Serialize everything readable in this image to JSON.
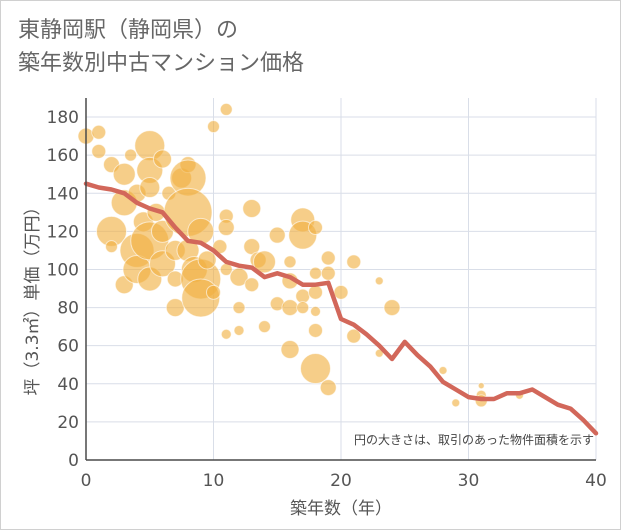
{
  "title_line1": "東静岡駅（静岡県）の",
  "title_line2": "築年数別中古マンション価格",
  "chart_data": {
    "type": "scatter",
    "xlabel": "築年数（年）",
    "ylabel": "坪（3.3㎡）単価（万円）",
    "xlim": [
      0,
      40
    ],
    "ylim": [
      0,
      190
    ],
    "x_ticks": [
      "0",
      "10",
      "20",
      "30",
      "40"
    ],
    "y_ticks": [
      "0",
      "20",
      "40",
      "60",
      "80",
      "100",
      "120",
      "140",
      "160",
      "180"
    ],
    "x_tick_values": [
      0,
      10,
      20,
      30,
      40
    ],
    "y_tick_values": [
      0,
      20,
      40,
      60,
      80,
      100,
      120,
      140,
      160,
      180
    ],
    "grid": true,
    "note": "円の大きさは、取引のあった物件面積を示す",
    "colors": {
      "bubble": "#f0b040",
      "line": "#d2675a",
      "grid": "#d9dee8",
      "axis": "#4a4a4a"
    },
    "line": {
      "x": [
        0,
        1,
        2,
        3,
        4,
        5,
        6,
        7,
        8,
        9,
        10,
        11,
        12,
        13,
        14,
        15,
        16,
        17,
        18,
        19,
        20,
        21,
        22,
        23,
        24,
        25,
        26,
        27,
        28,
        29,
        30,
        31,
        32,
        33,
        34,
        35,
        36,
        37,
        38,
        39,
        40
      ],
      "y": [
        145,
        143,
        142,
        140,
        135,
        132,
        130,
        122,
        115,
        114,
        110,
        104,
        102,
        101,
        96,
        98,
        96,
        92,
        92,
        93,
        74,
        71,
        66,
        60,
        53,
        62,
        55,
        49,
        41,
        37,
        33,
        32,
        32,
        35,
        35,
        37,
        33,
        29,
        27,
        21,
        14
      ]
    },
    "bubbles": [
      {
        "x": 0,
        "y": 170,
        "r": 8
      },
      {
        "x": 1,
        "y": 172,
        "r": 7
      },
      {
        "x": 1,
        "y": 162,
        "r": 7
      },
      {
        "x": 2,
        "y": 120,
        "r": 15
      },
      {
        "x": 2,
        "y": 155,
        "r": 8
      },
      {
        "x": 2,
        "y": 112,
        "r": 6
      },
      {
        "x": 3,
        "y": 150,
        "r": 11
      },
      {
        "x": 3,
        "y": 135,
        "r": 13
      },
      {
        "x": 3,
        "y": 92,
        "r": 9
      },
      {
        "x": 3.5,
        "y": 160,
        "r": 6
      },
      {
        "x": 4,
        "y": 140,
        "r": 9
      },
      {
        "x": 4,
        "y": 110,
        "r": 17
      },
      {
        "x": 4,
        "y": 100,
        "r": 14
      },
      {
        "x": 4.5,
        "y": 125,
        "r": 10
      },
      {
        "x": 5,
        "y": 165,
        "r": 15
      },
      {
        "x": 5,
        "y": 152,
        "r": 13
      },
      {
        "x": 5,
        "y": 143,
        "r": 10
      },
      {
        "x": 5,
        "y": 115,
        "r": 19
      },
      {
        "x": 5,
        "y": 95,
        "r": 12
      },
      {
        "x": 5.5,
        "y": 130,
        "r": 9
      },
      {
        "x": 6,
        "y": 158,
        "r": 9
      },
      {
        "x": 6,
        "y": 120,
        "r": 11
      },
      {
        "x": 6,
        "y": 103,
        "r": 13
      },
      {
        "x": 6.5,
        "y": 140,
        "r": 7
      },
      {
        "x": 7,
        "y": 110,
        "r": 10
      },
      {
        "x": 7,
        "y": 80,
        "r": 9
      },
      {
        "x": 7,
        "y": 95,
        "r": 8
      },
      {
        "x": 7.5,
        "y": 148,
        "r": 10
      },
      {
        "x": 8,
        "y": 155,
        "r": 8
      },
      {
        "x": 8,
        "y": 148,
        "r": 18
      },
      {
        "x": 8,
        "y": 130,
        "r": 24
      },
      {
        "x": 8,
        "y": 110,
        "r": 11
      },
      {
        "x": 8.5,
        "y": 100,
        "r": 13
      },
      {
        "x": 9,
        "y": 120,
        "r": 13
      },
      {
        "x": 9,
        "y": 95,
        "r": 20
      },
      {
        "x": 9,
        "y": 85,
        "r": 19
      },
      {
        "x": 9.5,
        "y": 105,
        "r": 9
      },
      {
        "x": 10,
        "y": 175,
        "r": 6
      },
      {
        "x": 10,
        "y": 88,
        "r": 7
      },
      {
        "x": 10.5,
        "y": 112,
        "r": 7
      },
      {
        "x": 11,
        "y": 184,
        "r": 6
      },
      {
        "x": 11,
        "y": 128,
        "r": 7
      },
      {
        "x": 11,
        "y": 122,
        "r": 8
      },
      {
        "x": 11,
        "y": 100,
        "r": 6
      },
      {
        "x": 11,
        "y": 66,
        "r": 5
      },
      {
        "x": 12,
        "y": 96,
        "r": 9
      },
      {
        "x": 12,
        "y": 80,
        "r": 6
      },
      {
        "x": 12,
        "y": 68,
        "r": 5
      },
      {
        "x": 13,
        "y": 132,
        "r": 9
      },
      {
        "x": 13,
        "y": 112,
        "r": 8
      },
      {
        "x": 13,
        "y": 92,
        "r": 7
      },
      {
        "x": 13.5,
        "y": 105,
        "r": 8
      },
      {
        "x": 14,
        "y": 104,
        "r": 11
      },
      {
        "x": 14,
        "y": 70,
        "r": 6
      },
      {
        "x": 15,
        "y": 118,
        "r": 8
      },
      {
        "x": 15,
        "y": 82,
        "r": 7
      },
      {
        "x": 16,
        "y": 104,
        "r": 6
      },
      {
        "x": 16,
        "y": 94,
        "r": 8
      },
      {
        "x": 16,
        "y": 80,
        "r": 8
      },
      {
        "x": 16,
        "y": 58,
        "r": 9
      },
      {
        "x": 17,
        "y": 126,
        "r": 12
      },
      {
        "x": 17,
        "y": 118,
        "r": 14
      },
      {
        "x": 17,
        "y": 86,
        "r": 7
      },
      {
        "x": 17,
        "y": 80,
        "r": 6
      },
      {
        "x": 18,
        "y": 122,
        "r": 7
      },
      {
        "x": 18,
        "y": 98,
        "r": 6
      },
      {
        "x": 18,
        "y": 88,
        "r": 7
      },
      {
        "x": 18,
        "y": 78,
        "r": 5
      },
      {
        "x": 18,
        "y": 68,
        "r": 7
      },
      {
        "x": 18,
        "y": 48,
        "r": 15
      },
      {
        "x": 19,
        "y": 106,
        "r": 7
      },
      {
        "x": 19,
        "y": 98,
        "r": 7
      },
      {
        "x": 19,
        "y": 38,
        "r": 8
      },
      {
        "x": 20,
        "y": 88,
        "r": 7
      },
      {
        "x": 21,
        "y": 104,
        "r": 7
      },
      {
        "x": 21,
        "y": 65,
        "r": 7
      },
      {
        "x": 23,
        "y": 94,
        "r": 4
      },
      {
        "x": 23,
        "y": 56,
        "r": 4
      },
      {
        "x": 24,
        "y": 80,
        "r": 8
      },
      {
        "x": 28,
        "y": 47,
        "r": 4
      },
      {
        "x": 29,
        "y": 30,
        "r": 4
      },
      {
        "x": 31,
        "y": 39,
        "r": 3
      },
      {
        "x": 31,
        "y": 34,
        "r": 5
      },
      {
        "x": 31,
        "y": 31,
        "r": 6
      },
      {
        "x": 34,
        "y": 34,
        "r": 4
      }
    ]
  }
}
